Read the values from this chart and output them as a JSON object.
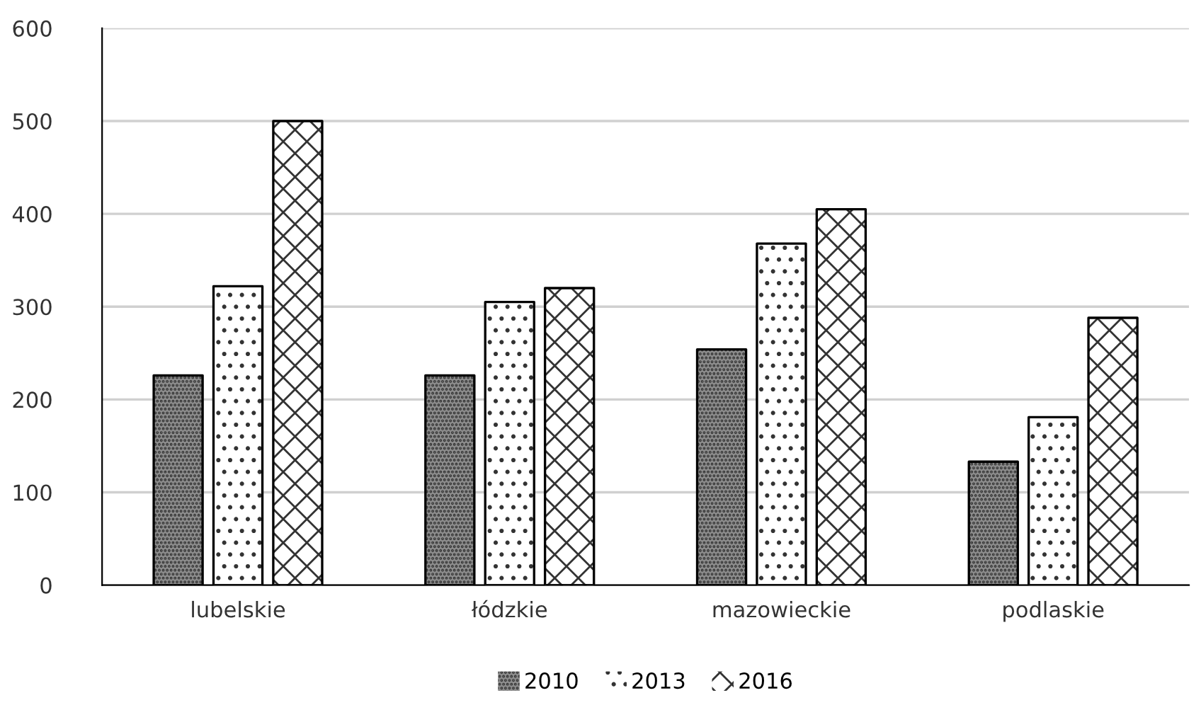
{
  "chart_data": {
    "type": "bar",
    "categories": [
      "lubelskie",
      "łódzkie",
      "mazowieckie",
      "podlaskie"
    ],
    "series": [
      {
        "name": "2010",
        "color": "#8c8c8c",
        "values": [
          226,
          226,
          254,
          133
        ]
      },
      {
        "name": "2013",
        "color": "#ffffff",
        "values": [
          322,
          305,
          368,
          181
        ]
      },
      {
        "name": "2016",
        "color": "#ffffff",
        "values": [
          500,
          320,
          405,
          288
        ]
      }
    ],
    "ylim": [
      0,
      600
    ],
    "yticks": [
      0,
      100,
      200,
      300,
      400,
      500,
      600
    ],
    "grid": "y",
    "legend": "bottom"
  }
}
